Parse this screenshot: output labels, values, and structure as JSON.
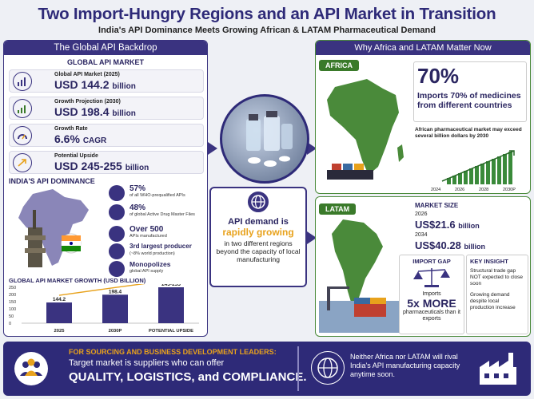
{
  "header": {
    "title": "Two Import-Hungry Regions and an API Market in Transition",
    "subtitle": "India's API Dominance Meets Growing African & LATAM Pharmaceutical Demand"
  },
  "left": {
    "heading": "The Global API Backdrop",
    "market_title": "GLOBAL API MARKET",
    "metrics": [
      {
        "label": "Global API Market (2025)",
        "prefix": "USD",
        "value": "144.2",
        "unit": "billion",
        "icon": "bar-chart-icon"
      },
      {
        "label": "Growth Projection (2030)",
        "prefix": "USD",
        "value": "198.4",
        "unit": "billion",
        "icon": "growth-chart-icon"
      },
      {
        "label": "Growth Rate",
        "prefix": "",
        "value": "6.6%",
        "unit": "CAGR",
        "icon": "gauge-icon"
      },
      {
        "label": "Potential Upside",
        "prefix": "USD",
        "value": "245-255",
        "unit": "billion",
        "icon": "arrow-up-icon"
      }
    ],
    "dominance_title": "INDIA'S API DOMINANCE",
    "dominance_items": [
      {
        "value": "57%",
        "desc": "of all WHO-prequalified APIs"
      },
      {
        "value": "48%",
        "desc": "of global Active Drug Master Files"
      },
      {
        "value": "Over 500",
        "desc": "APIs manufactured"
      },
      {
        "value": "3rd largest producer",
        "desc": "(~8% world production)"
      },
      {
        "value": "Monopolizes",
        "desc": "global API supply"
      }
    ],
    "growth_chart": {
      "title": "GLOBAL API MARKET GROWTH (USD BILLION)",
      "ticks": [
        "250",
        "200",
        "150",
        "100",
        "50",
        "0"
      ]
    }
  },
  "chart_data": {
    "type": "bar",
    "title": "GLOBAL API MARKET GROWTH (USD BILLION)",
    "categories": [
      "2025",
      "2030P",
      "POTENTIAL UPSIDE"
    ],
    "values": [
      144.2,
      198.4,
      250
    ],
    "data_labels": [
      "144.2",
      "198.4",
      "245-255"
    ],
    "ylim": [
      0,
      250
    ],
    "yticks": [
      0,
      50,
      100,
      150,
      200,
      250
    ],
    "bar_color": "#3a3380"
  },
  "center": {
    "line1": "API demand is",
    "line2": "rapidly growing",
    "line3": "in two different regions beyond the capacity of local manufacturing"
  },
  "right": {
    "heading": "Why Africa and LATAM Matter Now",
    "africa": {
      "tag": "AFRICA",
      "pct": "70%",
      "pct_desc": "Imports 70% of medicines from different countries",
      "note": "African pharmaceutical market may exceed several billion dollars by 2030",
      "years": [
        "2024",
        "2026",
        "2028",
        "2030P"
      ]
    },
    "latam": {
      "tag": "LATAM",
      "size_title": "MARKET SIZE",
      "year1": "2026",
      "val1": "US$21.6",
      "unit1": "billion",
      "year2": "2034",
      "val2": "US$40.28",
      "unit2": "billion",
      "gap_title": "IMPORT GAP",
      "gap_pre": "Imports",
      "gap_big": "5x MORE",
      "gap_post": "pharmaceuticals than it exports",
      "insight_title": "KEY INSIGHT",
      "insight1": "Structural trade gap NOT expected to close soon",
      "insight2": "Growing demand despite local production increase"
    }
  },
  "bottom": {
    "heading": "FOR SOURCING AND BUSINESS DEVELOPMENT LEADERS:",
    "line": "Target market is suppliers who can offer",
    "big": "QUALITY, LOGISTICS, and COMPLIANCE.",
    "right_text": "Neither Africa nor LATAM will rival India's API manufacturing capacity anytime soon."
  },
  "colors": {
    "primary": "#2e2a78",
    "accent": "#e8a21c",
    "green": "#3a7a2a"
  }
}
